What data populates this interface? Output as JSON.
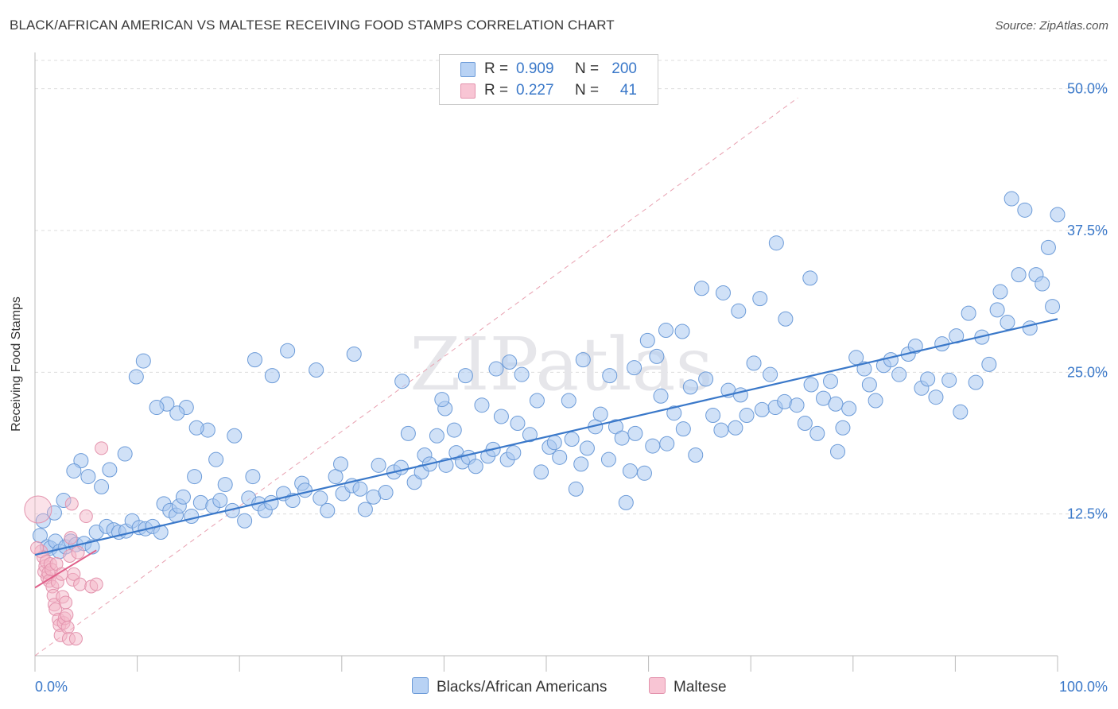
{
  "title": "BLACK/AFRICAN AMERICAN VS MALTESE RECEIVING FOOD STAMPS CORRELATION CHART",
  "source": "Source: ZipAtlas.com",
  "watermark": "ZIPatlas",
  "colors": {
    "blue": "#3a78c9",
    "blue_fill": "#a9c8f0",
    "blue_swatch": "#b8d2f4",
    "pink": "#e0608a",
    "pink_fill": "#f4b6c8",
    "pink_swatch": "#f8c5d4",
    "grid": "#dcdcdc",
    "diag": "#e8a0b0"
  },
  "legend_top": {
    "rows": [
      {
        "r_label": "R =",
        "r_value": "0.909",
        "n_label": "N =",
        "n_value": "200",
        "color": "#b8d2f4",
        "border": "#6c9bd8"
      },
      {
        "r_label": "R =",
        "r_value": "0.227",
        "n_label": "N =",
        "n_value": "41",
        "color": "#f8c5d4",
        "border": "#e393ad"
      }
    ]
  },
  "legend_bottom": [
    {
      "label": "Blacks/African Americans",
      "color": "#b8d2f4",
      "border": "#6c9bd8"
    },
    {
      "label": "Maltese",
      "color": "#f8c5d4",
      "border": "#e393ad"
    }
  ],
  "chart_data": {
    "type": "scatter",
    "title": "BLACK/AFRICAN AMERICAN VS MALTESE RECEIVING FOOD STAMPS CORRELATION CHART",
    "xlabel": "",
    "ylabel": "Receiving Food Stamps",
    "xlim": [
      0,
      100
    ],
    "ylim": [
      0,
      52.5
    ],
    "x_tick_labels": [
      "0.0%",
      "100.0%"
    ],
    "y_tick_labels": [
      "12.5%",
      "25.0%",
      "37.5%",
      "50.0%"
    ],
    "y_tick_values": [
      12.5,
      25.0,
      37.5,
      50.0
    ],
    "grid": true,
    "legend_placement": "top-center",
    "series": [
      {
        "name": "Blacks/African Americans",
        "R": 0.909,
        "N": 200,
        "trend": {
          "x": [
            0,
            100
          ],
          "y": [
            8.9,
            29.7
          ]
        },
        "points": [
          [
            0.5,
            10.6
          ],
          [
            1.2,
            9.6
          ],
          [
            1.5,
            9.5
          ],
          [
            2,
            10.1
          ],
          [
            2.4,
            9.2
          ],
          [
            3,
            9.6
          ],
          [
            3.5,
            10.1
          ],
          [
            4,
            9.8
          ],
          [
            4.8,
            9.9
          ],
          [
            5.6,
            9.6
          ],
          [
            6,
            10.9
          ],
          [
            7,
            11.4
          ],
          [
            7.7,
            11.1
          ],
          [
            8.2,
            10.9
          ],
          [
            8.9,
            11
          ],
          [
            9.5,
            11.9
          ],
          [
            10.2,
            11.3
          ],
          [
            10.8,
            11.2
          ],
          [
            11.5,
            11.4
          ],
          [
            12.3,
            10.9
          ],
          [
            12.6,
            13.4
          ],
          [
            13.2,
            12.8
          ],
          [
            13.8,
            12.4
          ],
          [
            14.1,
            13.2
          ],
          [
            15.3,
            12.3
          ],
          [
            14.5,
            14
          ],
          [
            15.6,
            15.8
          ],
          [
            16.2,
            13.5
          ],
          [
            17.4,
            13.2
          ],
          [
            18.1,
            13.7
          ],
          [
            18.6,
            15.1
          ],
          [
            19.3,
            12.8
          ],
          [
            20.5,
            11.9
          ],
          [
            20.9,
            13.9
          ],
          [
            21.3,
            15.8
          ],
          [
            21.9,
            13.4
          ],
          [
            22.5,
            12.8
          ],
          [
            23.1,
            13.5
          ],
          [
            24.3,
            14.3
          ],
          [
            25.2,
            13.7
          ],
          [
            26.1,
            15.2
          ],
          [
            26.4,
            14.6
          ],
          [
            27.9,
            13.9
          ],
          [
            28.6,
            12.8
          ],
          [
            29.4,
            15.8
          ],
          [
            29.9,
            16.9
          ],
          [
            30.1,
            14.3
          ],
          [
            31,
            15
          ],
          [
            31.8,
            14.7
          ],
          [
            32.3,
            12.9
          ],
          [
            33.1,
            14
          ],
          [
            33.6,
            16.8
          ],
          [
            34.3,
            14.4
          ],
          [
            35.1,
            16.2
          ],
          [
            35.8,
            16.6
          ],
          [
            36.5,
            19.6
          ],
          [
            37.1,
            15.3
          ],
          [
            37.8,
            16.2
          ],
          [
            38.1,
            17.7
          ],
          [
            38.6,
            16.9
          ],
          [
            39.3,
            19.4
          ],
          [
            40.2,
            16.8
          ],
          [
            41.2,
            17.9
          ],
          [
            41.8,
            17.1
          ],
          [
            42.4,
            17.5
          ],
          [
            43.1,
            16.7
          ],
          [
            44.3,
            17.6
          ],
          [
            44.8,
            18.2
          ],
          [
            45.6,
            21.1
          ],
          [
            46.2,
            17.3
          ],
          [
            46.8,
            17.9
          ],
          [
            47.2,
            20.5
          ],
          [
            48.4,
            19.5
          ],
          [
            49.5,
            16.2
          ],
          [
            50.3,
            18.4
          ],
          [
            50.8,
            18.8
          ],
          [
            51.3,
            17.5
          ],
          [
            52.5,
            19.1
          ],
          [
            52.9,
            14.7
          ],
          [
            53.4,
            16.9
          ],
          [
            54,
            18.3
          ],
          [
            54.8,
            20.2
          ],
          [
            55.3,
            21.3
          ],
          [
            56.1,
            17.3
          ],
          [
            56.8,
            20.2
          ],
          [
            57.4,
            19.2
          ],
          [
            58.2,
            16.3
          ],
          [
            58.7,
            19.6
          ],
          [
            59.6,
            16.1
          ],
          [
            60.4,
            18.5
          ],
          [
            61.2,
            22.9
          ],
          [
            61.8,
            18.7
          ],
          [
            62.5,
            21.4
          ],
          [
            63.4,
            20
          ],
          [
            64.1,
            23.7
          ],
          [
            64.6,
            17.7
          ],
          [
            65.6,
            24.4
          ],
          [
            66.3,
            21.2
          ],
          [
            67.1,
            19.9
          ],
          [
            67.8,
            23.4
          ],
          [
            68.5,
            20.1
          ],
          [
            69,
            23
          ],
          [
            69.6,
            21.2
          ],
          [
            70.3,
            25.8
          ],
          [
            71.1,
            21.7
          ],
          [
            71.9,
            24.8
          ],
          [
            72.4,
            21.9
          ],
          [
            73.3,
            22.4
          ],
          [
            74.5,
            22.1
          ],
          [
            75.3,
            20.5
          ],
          [
            75.9,
            23.9
          ],
          [
            76.5,
            19.6
          ],
          [
            77.1,
            22.7
          ],
          [
            77.8,
            24.2
          ],
          [
            78.3,
            22.2
          ],
          [
            79,
            20.1
          ],
          [
            79.6,
            21.8
          ],
          [
            80.3,
            26.3
          ],
          [
            81.1,
            25.3
          ],
          [
            81.6,
            23.9
          ],
          [
            82.2,
            22.5
          ],
          [
            83,
            25.6
          ],
          [
            83.7,
            26.1
          ],
          [
            84.5,
            24.8
          ],
          [
            85.4,
            26.6
          ],
          [
            86.1,
            27.3
          ],
          [
            86.7,
            23.6
          ],
          [
            87.3,
            24.4
          ],
          [
            88.1,
            22.8
          ],
          [
            88.7,
            27.5
          ],
          [
            89.4,
            24.3
          ],
          [
            90.1,
            28.2
          ],
          [
            90.5,
            21.5
          ],
          [
            91.3,
            30.2
          ],
          [
            92,
            24.1
          ],
          [
            92.6,
            28.1
          ],
          [
            93.3,
            25.7
          ],
          [
            94.1,
            30.5
          ],
          [
            94.4,
            32.1
          ],
          [
            95.1,
            29.4
          ],
          [
            95.5,
            40.3
          ],
          [
            96.2,
            33.6
          ],
          [
            96.8,
            39.3
          ],
          [
            97.3,
            28.9
          ],
          [
            97.9,
            33.6
          ],
          [
            98.5,
            32.8
          ],
          [
            99.1,
            36
          ],
          [
            99.5,
            30.8
          ],
          [
            100,
            38.9
          ],
          [
            78.5,
            18
          ],
          [
            57.8,
            13.5
          ],
          [
            40.1,
            21.8
          ],
          [
            35.9,
            24.2
          ],
          [
            31.2,
            26.6
          ],
          [
            27.5,
            25.2
          ],
          [
            24.7,
            26.9
          ],
          [
            23.2,
            24.7
          ],
          [
            21.5,
            26.1
          ],
          [
            19.5,
            19.4
          ],
          [
            17.7,
            17.3
          ],
          [
            16.9,
            19.9
          ],
          [
            15.8,
            20.1
          ],
          [
            14.8,
            21.9
          ],
          [
            13.9,
            21.4
          ],
          [
            12.9,
            22.2
          ],
          [
            11.9,
            21.9
          ],
          [
            10.6,
            26
          ],
          [
            9.9,
            24.6
          ],
          [
            8.8,
            17.8
          ],
          [
            7.3,
            16.4
          ],
          [
            6.5,
            14.9
          ],
          [
            5.2,
            15.8
          ],
          [
            4.5,
            17.2
          ],
          [
            3.8,
            16.3
          ],
          [
            2.8,
            13.7
          ],
          [
            1.9,
            12.6
          ],
          [
            0.8,
            11.9
          ],
          [
            72.5,
            36.4
          ],
          [
            65.2,
            32.4
          ],
          [
            67.3,
            32
          ],
          [
            68.8,
            30.4
          ],
          [
            70.9,
            31.5
          ],
          [
            73.4,
            29.7
          ],
          [
            75.8,
            33.3
          ],
          [
            61.7,
            28.7
          ],
          [
            63.3,
            28.6
          ],
          [
            59.9,
            27.8
          ],
          [
            60.8,
            26.4
          ],
          [
            58.6,
            25.4
          ],
          [
            56.2,
            24.7
          ],
          [
            53.6,
            26.1
          ],
          [
            52.2,
            22.5
          ],
          [
            49.1,
            22.5
          ],
          [
            47.6,
            24.8
          ],
          [
            46.4,
            25.9
          ],
          [
            45.1,
            25.3
          ],
          [
            43.7,
            22.1
          ],
          [
            42.1,
            24.7
          ],
          [
            41,
            19.9
          ],
          [
            39.8,
            22.6
          ]
        ]
      },
      {
        "name": "Maltese",
        "R": 0.227,
        "N": 41,
        "trend": {
          "x": [
            0,
            6
          ],
          "y": [
            6.0,
            9.3
          ]
        },
        "points": [
          [
            0.3,
            12.9
          ],
          [
            0.6,
            9.2
          ],
          [
            0.8,
            8.7
          ],
          [
            0.9,
            7.4
          ],
          [
            1,
            7.9
          ],
          [
            1.1,
            8.3
          ],
          [
            1.2,
            6.9
          ],
          [
            1.3,
            7.3
          ],
          [
            1.4,
            6.6
          ],
          [
            1.5,
            8.1
          ],
          [
            1.6,
            7.6
          ],
          [
            1.7,
            6.1
          ],
          [
            1.8,
            5.3
          ],
          [
            1.9,
            4.5
          ],
          [
            2,
            4.1
          ],
          [
            2.1,
            8.1
          ],
          [
            2.2,
            6.5
          ],
          [
            2.3,
            3.2
          ],
          [
            2.4,
            2.7
          ],
          [
            2.5,
            1.8
          ],
          [
            2.6,
            7.2
          ],
          [
            2.7,
            5.2
          ],
          [
            2.8,
            2.9
          ],
          [
            2.9,
            3.3
          ],
          [
            3,
            4.7
          ],
          [
            3.1,
            3.6
          ],
          [
            3.2,
            2.5
          ],
          [
            3.3,
            1.5
          ],
          [
            3.4,
            8.8
          ],
          [
            3.5,
            10.4
          ],
          [
            3.6,
            13.4
          ],
          [
            3.7,
            6.7
          ],
          [
            3.8,
            7.2
          ],
          [
            4,
            1.5
          ],
          [
            4.2,
            9.1
          ],
          [
            4.4,
            6.3
          ],
          [
            5,
            12.3
          ],
          [
            5.5,
            6.1
          ],
          [
            6,
            6.3
          ],
          [
            6.5,
            18.3
          ],
          [
            0.2,
            9.5
          ]
        ]
      }
    ]
  }
}
